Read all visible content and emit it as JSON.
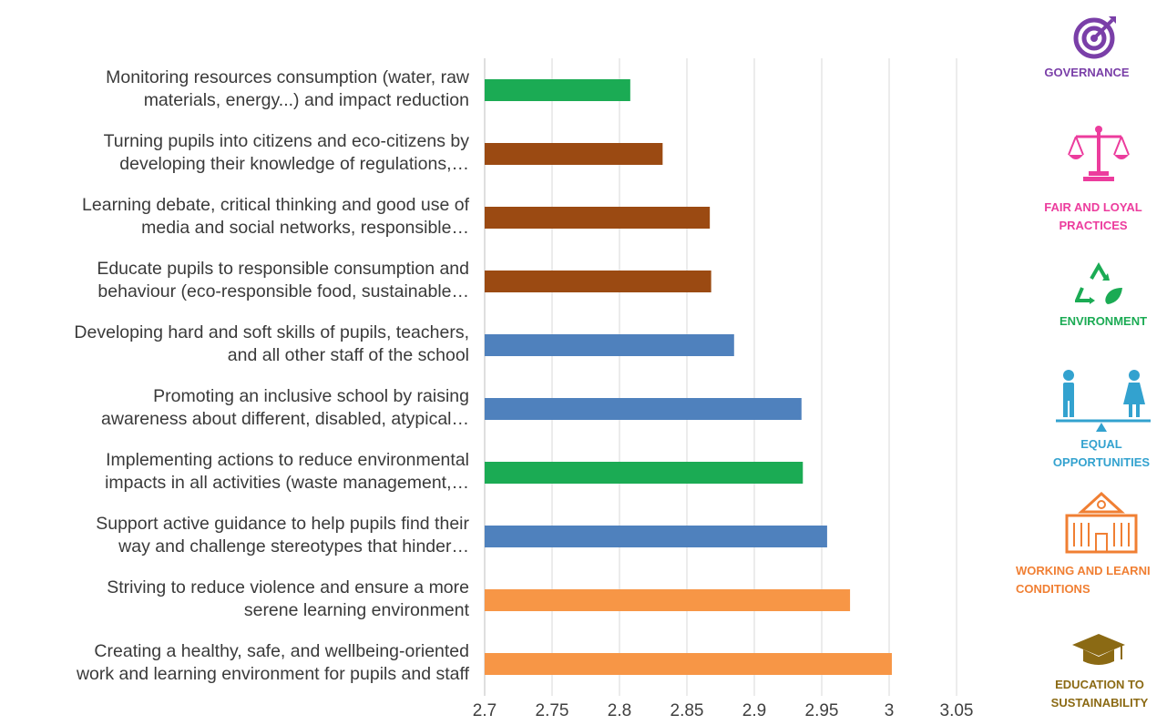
{
  "chart_data": {
    "type": "bar",
    "orientation": "horizontal",
    "title": "",
    "xlabel": "",
    "ylabel": "",
    "xlim": [
      2.7,
      3.05
    ],
    "ticks": [
      "2.7",
      "2.75",
      "2.8",
      "2.85",
      "2.9",
      "2.95",
      "3",
      "3.05"
    ],
    "tick_values": [
      2.7,
      2.75,
      2.8,
      2.85,
      2.9,
      2.95,
      3.0,
      3.05
    ],
    "grid": true,
    "categories": [
      "Monitoring resources consumption (water, raw\nmaterials, energy...) and impact reduction",
      "Turning pupils into citizens and eco-citizens by\ndeveloping their knowledge of regulations,…",
      "Learning debate, critical thinking and good use of\nmedia and social networks, responsible…",
      "Educate pupils to responsible consumption and\nbehaviour (eco-responsible food, sustainable…",
      "Developing hard and soft skills of pupils, teachers,\nand all other staff of the school",
      "Promoting an inclusive school by raising\nawareness about different, disabled, atypical…",
      "Implementing actions to reduce environmental\nimpacts in all activities (waste management,…",
      "Support active guidance to help pupils find their\nway and challenge stereotypes that hinder…",
      "Striving to reduce violence and ensure a more\nserene learning environment",
      "Creating a healthy, safe, and wellbeing-oriented\nwork and learning environment for pupils and staff"
    ],
    "values": [
      2.808,
      2.832,
      2.867,
      2.868,
      2.885,
      2.935,
      2.936,
      2.954,
      2.971,
      3.002
    ],
    "bar_groups": [
      "environment",
      "education",
      "education",
      "education",
      "equal",
      "equal",
      "environment",
      "equal",
      "working",
      "working"
    ],
    "group_colors": {
      "environment": "#1bab54",
      "education": "#9b4a12",
      "equal": "#4f81bd",
      "working": "#f79646"
    }
  },
  "legend": {
    "governance": {
      "label": "GOVERNANCE",
      "color": "#7a3fa8",
      "icon": "target-icon"
    },
    "fair": {
      "label": "FAIR AND LOYAL\nPRACTICES",
      "color": "#ec3c9d",
      "icon": "scales-icon"
    },
    "environment": {
      "label": "ENVIRONMENT",
      "color": "#1bab54",
      "icon": "recycle-leaf-icon"
    },
    "equal": {
      "label": "EQUAL\nOPPORTUNITIES",
      "color": "#33a2cf",
      "icon": "man-woman-seesaw-icon"
    },
    "working": {
      "label": "WORKING AND LEARNI\nCONDITIONS",
      "color": "#f07f33",
      "icon": "school-building-icon"
    },
    "education": {
      "label": "EDUCATION TO\nSUSTAINABILITY",
      "color": "#8b6a14",
      "icon": "graduation-cap-icon"
    }
  }
}
